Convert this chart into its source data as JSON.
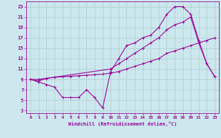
{
  "title": "",
  "xlabel": "Windchill (Refroidissement éolien,°C)",
  "bg_color": "#cce8ee",
  "line_color": "#990099",
  "xlim": [
    -0.5,
    23.5
  ],
  "ylim": [
    2.5,
    24
  ],
  "yticks": [
    3,
    5,
    7,
    9,
    11,
    13,
    15,
    17,
    19,
    21,
    23
  ],
  "xticks": [
    0,
    1,
    2,
    3,
    4,
    5,
    6,
    7,
    8,
    9,
    10,
    11,
    12,
    13,
    14,
    15,
    16,
    17,
    18,
    19,
    20,
    21,
    22,
    23
  ],
  "line1_x": [
    0,
    1,
    2,
    3,
    4,
    5,
    6,
    7,
    8,
    9,
    10,
    11,
    12,
    13,
    14,
    15,
    16,
    17,
    18,
    19,
    20,
    21,
    22,
    23
  ],
  "line1_y": [
    9,
    8.5,
    8,
    7.5,
    5.5,
    5.5,
    5.5,
    7,
    5.5,
    3.5,
    10.5,
    13,
    15.5,
    16,
    17,
    17.5,
    19,
    21.5,
    23,
    23,
    21.5,
    16.5,
    12,
    9.5
  ],
  "line2_x": [
    0,
    1,
    2,
    10,
    11,
    12,
    13,
    14,
    15,
    16,
    17,
    18,
    19,
    20,
    21,
    22,
    23
  ],
  "line2_y": [
    9,
    8.7,
    9.2,
    11,
    12,
    13,
    14,
    15,
    16,
    17,
    18.5,
    19.5,
    20,
    21,
    16,
    12,
    9.5
  ],
  "line3_x": [
    0,
    1,
    2,
    3,
    4,
    5,
    6,
    7,
    8,
    9,
    10,
    11,
    12,
    13,
    14,
    15,
    16,
    17,
    18,
    19,
    20,
    21,
    22,
    23
  ],
  "line3_y": [
    9,
    9,
    9.2,
    9.4,
    9.5,
    9.6,
    9.7,
    9.8,
    9.9,
    10,
    10.2,
    10.5,
    11,
    11.5,
    12,
    12.5,
    13,
    14,
    14.5,
    15,
    15.5,
    16,
    16.5,
    17
  ],
  "grid_color": "#aacccc",
  "markersize": 2.0,
  "linewidth": 0.8
}
